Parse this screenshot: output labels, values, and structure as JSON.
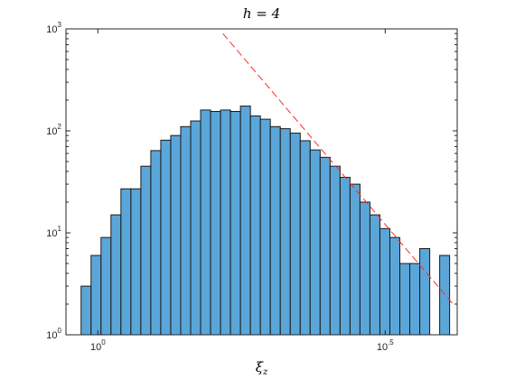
{
  "chart_data": {
    "type": "bar",
    "subtype": "histogram",
    "title": "h = 4",
    "xlabel": "ξ_z",
    "ylabel": "",
    "x_scale": "log10",
    "y_scale": "log10",
    "xlim": [
      0.88,
      4.22
    ],
    "ylim": [
      1,
      1000
    ],
    "x_tick_values": [
      1,
      3.1623
    ],
    "x_tick_labels": [
      {
        "base": "10",
        "exp": "0"
      },
      {
        "base": "10",
        "exp": ".5"
      }
    ],
    "y_tick_values": [
      1,
      10,
      100,
      1000
    ],
    "y_tick_labels": [
      {
        "base": "10",
        "exp": "0"
      },
      {
        "base": "10",
        "exp": "1"
      },
      {
        "base": "10",
        "exp": "2"
      },
      {
        "base": "10",
        "exp": "3"
      }
    ],
    "grid": false,
    "bins": {
      "x_start": 0.935,
      "x_end": 4.094,
      "counts": [
        3,
        6,
        9,
        15,
        27,
        27,
        45,
        64,
        81,
        90,
        110,
        125,
        160,
        155,
        160,
        155,
        175,
        140,
        130,
        110,
        105,
        95,
        80,
        65,
        55,
        45,
        35,
        30,
        20,
        15,
        11,
        9,
        5,
        5,
        7,
        0,
        6
      ]
    },
    "bar_color": "#5ba6d9",
    "edge_color": "#1a1a1a",
    "reference_line": {
      "style": "dashed",
      "color": "#ff2a2a",
      "points": [
        [
          1.65,
          900
        ],
        [
          4.15,
          2
        ]
      ]
    }
  }
}
